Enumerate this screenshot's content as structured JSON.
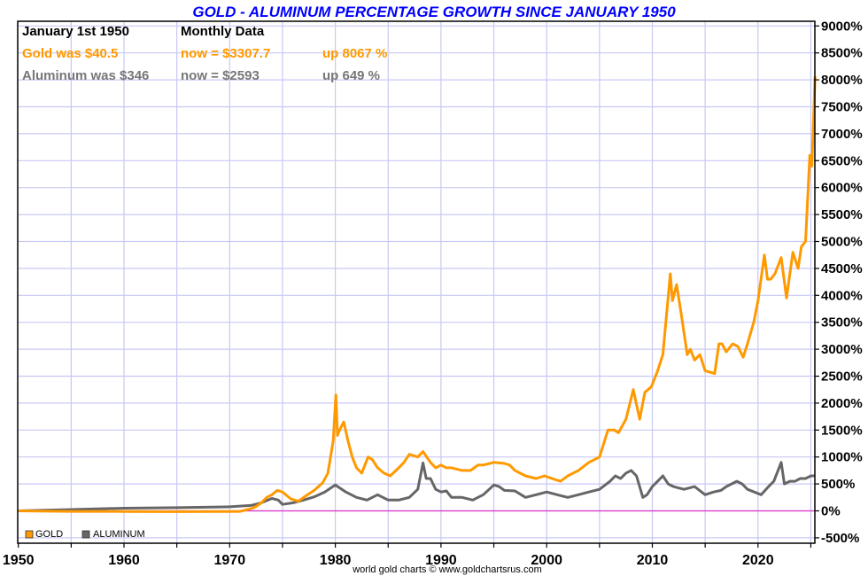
{
  "chart_data": {
    "type": "line",
    "title": "GOLD - ALUMINUM PERCENTAGE GROWTH SINCE JANUARY 1950",
    "xlabel": "",
    "ylabel": "",
    "xlim": [
      1950,
      2025.4
    ],
    "ylim": [
      -500,
      9000
    ],
    "x_ticks": [
      1950,
      1960,
      1970,
      1980,
      1990,
      2000,
      2010,
      2020
    ],
    "y_ticks": [
      -500,
      0,
      500,
      1000,
      1500,
      2000,
      2500,
      3000,
      3500,
      4000,
      4500,
      5000,
      5500,
      6000,
      6500,
      7000,
      7500,
      8000,
      8500,
      9000
    ],
    "y_tick_suffix": "%",
    "grid": true,
    "legend_position": "bottom-left",
    "annotations": {
      "date_label": "January 1st 1950",
      "frequency_label": "Monthly Data",
      "gold_was": "Gold was $40.5",
      "gold_now": "now = $3307.7",
      "gold_up": "up 8067 %",
      "alu_was": "Aluminum was $346",
      "alu_now": "now = $2593",
      "alu_up": "up 649 %"
    },
    "footer": "world gold charts © www.goldchartsrus.com",
    "series": [
      {
        "name": "GOLD",
        "color": "#ff9900",
        "x": [
          1950,
          1955,
          1960,
          1965,
          1968,
          1970,
          1971,
          1972,
          1972.5,
          1973,
          1973.5,
          1974,
          1974.5,
          1975,
          1975.8,
          1976.5,
          1977,
          1978,
          1978.8,
          1979.3,
          1979.8,
          1980.05,
          1980.2,
          1980.4,
          1980.8,
          1981.2,
          1981.6,
          1982,
          1982.5,
          1983.1,
          1983.5,
          1984,
          1984.6,
          1985.2,
          1986,
          1986.5,
          1987,
          1987.8,
          1988.3,
          1989,
          1989.5,
          1990,
          1990.5,
          1991,
          1992,
          1992.8,
          1993.5,
          1994,
          1995,
          1996,
          1996.5,
          1997,
          1998,
          1999,
          1999.8,
          2000.5,
          2001.3,
          2002,
          2003,
          2004,
          2005,
          2005.8,
          2006.4,
          2006.8,
          2007.5,
          2008.2,
          2008.8,
          2009.3,
          2009.9,
          2010.5,
          2011,
          2011.7,
          2011.9,
          2012.3,
          2012.7,
          2013.3,
          2013.6,
          2014,
          2014.5,
          2015,
          2015.9,
          2016.3,
          2016.6,
          2017,
          2017.6,
          2018.1,
          2018.6,
          2019,
          2019.6,
          2020,
          2020.6,
          2020.9,
          2021.2,
          2021.6,
          2022.2,
          2022.7,
          2023.3,
          2023.8,
          2024.1,
          2024.5,
          2024.9,
          2025.1,
          2025.25,
          2025.4
        ],
        "values": [
          0,
          -10,
          -12,
          -14,
          -12,
          -13,
          -10,
          40,
          80,
          150,
          250,
          300,
          380,
          350,
          220,
          180,
          250,
          380,
          520,
          700,
          1300,
          2150,
          1400,
          1500,
          1650,
          1300,
          1000,
          800,
          700,
          1000,
          950,
          800,
          700,
          650,
          800,
          900,
          1050,
          1000,
          1100,
          900,
          800,
          850,
          800,
          800,
          750,
          750,
          850,
          850,
          900,
          880,
          850,
          750,
          650,
          600,
          650,
          600,
          550,
          650,
          750,
          900,
          1000,
          1500,
          1500,
          1450,
          1700,
          2250,
          1700,
          2200,
          2300,
          2600,
          2900,
          4400,
          3900,
          4200,
          3700,
          2900,
          3000,
          2800,
          2900,
          2600,
          2550,
          3100,
          3100,
          2950,
          3100,
          3050,
          2850,
          3100,
          3500,
          3900,
          4750,
          4300,
          4300,
          4400,
          4700,
          3950,
          4800,
          4500,
          4900,
          5000,
          6600,
          6400,
          7200,
          8067
        ]
      },
      {
        "name": "ALUMINUM",
        "color": "#666666",
        "x": [
          1950,
          1955,
          1960,
          1965,
          1970,
          1972,
          1973,
          1974,
          1974.6,
          1975,
          1976,
          1977,
          1978,
          1979,
          1980,
          1981,
          1982,
          1983,
          1984,
          1985,
          1986,
          1987,
          1987.8,
          1988.3,
          1988.6,
          1989,
          1989.5,
          1990,
          1990.5,
          1991,
          1992,
          1993,
          1994,
          1995,
          1995.5,
          1996,
          1997,
          1998,
          1999,
          2000,
          2001,
          2002,
          2003,
          2004,
          2005,
          2006,
          2006.5,
          2007,
          2007.5,
          2008,
          2008.5,
          2009.1,
          2009.5,
          2010,
          2010.5,
          2011,
          2011.5,
          2012,
          2013,
          2014,
          2015,
          2015.8,
          2016.5,
          2017,
          2018,
          2018.5,
          2019,
          2020.3,
          2021,
          2021.5,
          2022.2,
          2022.5,
          2023,
          2023.5,
          2024,
          2024.5,
          2025,
          2025.4
        ],
        "values": [
          0,
          25,
          50,
          60,
          75,
          100,
          150,
          230,
          200,
          120,
          150,
          200,
          260,
          350,
          480,
          350,
          250,
          200,
          300,
          200,
          200,
          250,
          400,
          890,
          600,
          600,
          400,
          350,
          370,
          250,
          250,
          200,
          300,
          480,
          450,
          380,
          370,
          250,
          300,
          350,
          300,
          250,
          300,
          350,
          400,
          550,
          650,
          600,
          700,
          750,
          650,
          250,
          300,
          450,
          550,
          650,
          500,
          450,
          400,
          450,
          300,
          350,
          380,
          450,
          550,
          500,
          400,
          300,
          450,
          550,
          900,
          500,
          550,
          550,
          600,
          600,
          650,
          649
        ]
      }
    ]
  }
}
